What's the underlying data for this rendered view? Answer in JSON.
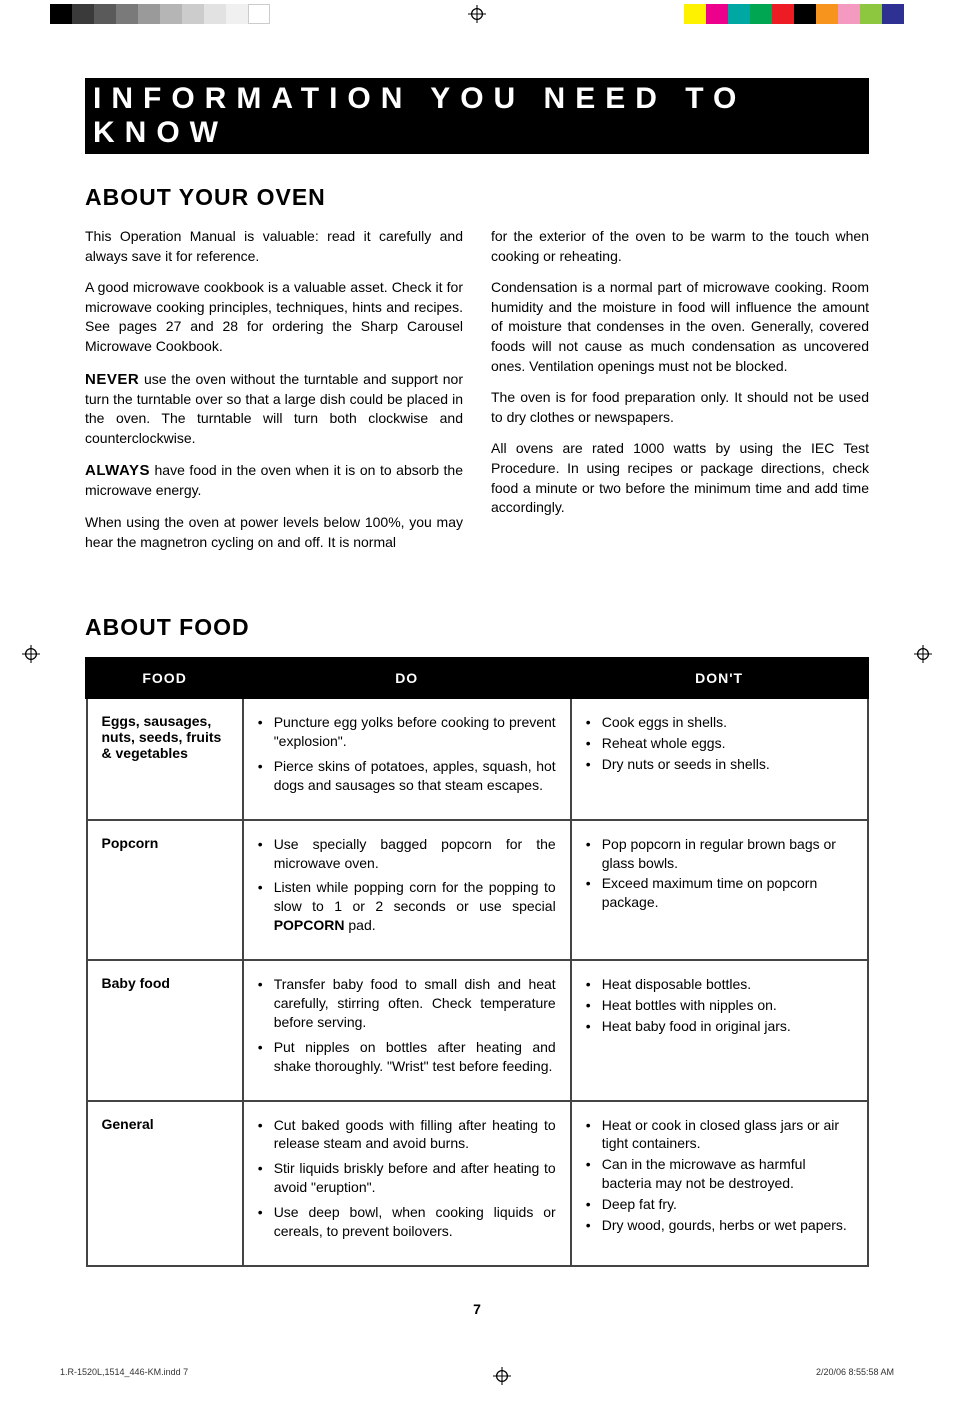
{
  "print_swatches_left": [
    "#000000",
    "#3a3a3a",
    "#5a5a5a",
    "#7a7a7a",
    "#9a9a9a",
    "#b5b5b5",
    "#cccccc",
    "#e2e2e2",
    "#f0f0f0",
    "#ffffff"
  ],
  "print_swatches_right": [
    "#fff200",
    "#ec008c",
    "#00a8a3",
    "#00a651",
    "#ed1c24",
    "#000000",
    "#f7941e",
    "#f49ac1",
    "#8dc63f",
    "#2e3192"
  ],
  "title_bar": "INFORMATION YOU NEED TO KNOW",
  "about_oven": {
    "heading": "ABOUT YOUR OVEN",
    "left": [
      "This Operation Manual is valuable: read it carefully and always save it for reference.",
      "A good microwave cookbook is a valuable asset. Check it for microwave cooking principles, techniques, hints and recipes. See pages 27 and 28 for ordering the Sharp Carousel Microwave Cookbook.",
      {
        "strong": "NEVER",
        "text": " use the oven without the turntable and support nor turn the turntable over so that a large dish could be placed in the oven. The turntable will turn both clockwise and counterclockwise."
      },
      {
        "strong": "ALWAYS",
        "text": " have food in the oven when it is on to absorb the microwave energy."
      },
      "When using the oven at power levels below 100%, you may hear the magnetron cycling on and off. It is normal"
    ],
    "right": [
      "for the exterior of the oven to be warm to the touch when cooking or reheating.",
      "Condensation is a normal part of microwave cooking. Room humidity and the moisture in food will influence the amount of moisture that condenses in the oven. Generally, covered foods will not cause as much condensation as uncovered ones. Ventilation openings must not be blocked.",
      "The oven is for food preparation only. It should not be used to dry clothes or newspapers.",
      "All ovens are rated 1000 watts by using the IEC Test Procedure. In using recipes or package directions, check food a minute or two before the minimum time and add time accordingly."
    ]
  },
  "about_food": {
    "heading": "ABOUT FOOD",
    "columns": [
      "FOOD",
      "DO",
      "DON'T"
    ],
    "rows": [
      {
        "name": "Eggs, sausages, nuts, seeds, fruits & vegetables",
        "do": [
          "Puncture egg yolks before cooking to prevent \"explosion\".",
          "Pierce skins of potatoes, apples, squash, hot dogs and sausages so that steam escapes."
        ],
        "dont": [
          "Cook eggs in shells.",
          "Reheat whole eggs.",
          "Dry nuts or seeds in shells."
        ]
      },
      {
        "name": "Popcorn",
        "do": [
          "Use specially bagged popcorn for the microwave oven.",
          {
            "text_before": "Listen while popping corn for the popping to slow to 1 or 2 seconds or use special ",
            "strong": "POPCORN",
            "text_after": " pad."
          }
        ],
        "dont": [
          "Pop popcorn in regular brown bags or glass bowls.",
          "Exceed maximum time on popcorn package."
        ]
      },
      {
        "name": "Baby food",
        "do": [
          "Transfer baby food to small dish and heat carefully, stirring often. Check temperature before serving.",
          "Put nipples on bottles after heating and shake thoroughly. \"Wrist\" test before feeding."
        ],
        "dont": [
          "Heat disposable bottles.",
          "Heat bottles with nipples on.",
          "Heat baby food in original jars."
        ]
      },
      {
        "name": "General",
        "do": [
          "Cut baked goods with filling after heating to release steam and avoid burns.",
          "Stir liquids briskly before and after heating to avoid \"eruption\".",
          "Use deep bowl, when cooking liquids or cereals, to prevent boilovers."
        ],
        "dont": [
          "Heat or cook in closed glass jars or air tight containers.",
          "Can in the microwave as harmful bacteria may not be destroyed.",
          "Deep fat fry.",
          "Dry wood, gourds, herbs or wet papers."
        ]
      }
    ]
  },
  "page_number": "7",
  "footer": {
    "left": "1.R-1520L,1514_446-KM.indd   7",
    "right": "2/20/06   8:55:58 AM"
  }
}
